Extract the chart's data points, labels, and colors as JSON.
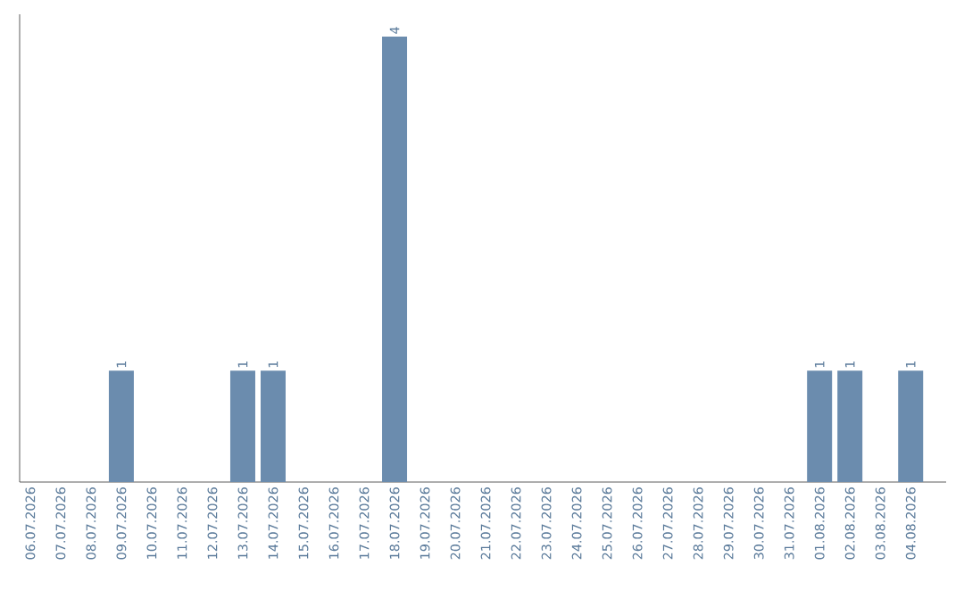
{
  "chart_data": {
    "type": "bar",
    "color": "#6b8cae",
    "categories": [
      "06.07.2026",
      "07.07.2026",
      "08.07.2026",
      "09.07.2026",
      "10.07.2026",
      "11.07.2026",
      "12.07.2026",
      "13.07.2026",
      "14.07.2026",
      "15.07.2026",
      "16.07.2026",
      "17.07.2026",
      "18.07.2026",
      "19.07.2026",
      "20.07.2026",
      "21.07.2026",
      "22.07.2026",
      "23.07.2026",
      "24.07.2026",
      "25.07.2026",
      "26.07.2026",
      "27.07.2026",
      "28.07.2026",
      "29.07.2026",
      "30.07.2026",
      "31.07.2026",
      "01.08.2026",
      "02.08.2026",
      "03.08.2026",
      "04.08.2026"
    ],
    "values": [
      0,
      0,
      0,
      1,
      0,
      0,
      0,
      1,
      1,
      0,
      0,
      0,
      4,
      0,
      0,
      0,
      0,
      0,
      0,
      0,
      0,
      0,
      0,
      0,
      0,
      0,
      1,
      1,
      0,
      1
    ],
    "value_labels": [
      null,
      null,
      null,
      "1",
      null,
      null,
      null,
      "1",
      "1",
      null,
      null,
      null,
      "4",
      null,
      null,
      null,
      null,
      null,
      null,
      null,
      null,
      null,
      null,
      null,
      null,
      null,
      "1",
      "1",
      null,
      "1"
    ],
    "grid": false
  }
}
